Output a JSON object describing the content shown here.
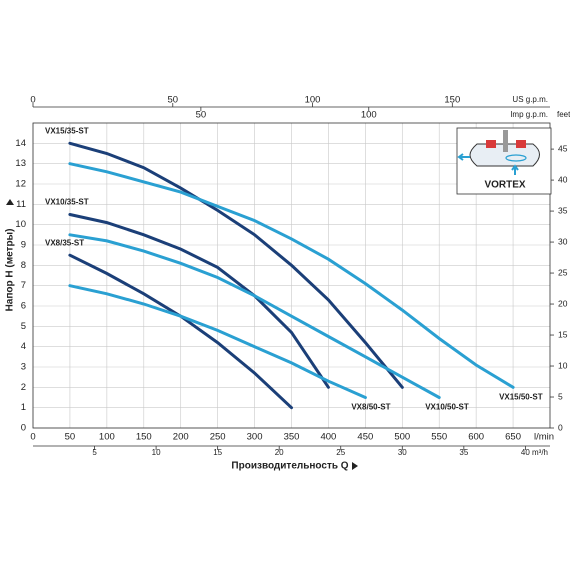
{
  "chart_data": {
    "type": "line",
    "y_label": "Напор H (метры)",
    "x_label": "Производительность Q",
    "x_unit": "l/min",
    "xlim": [
      0,
      700
    ],
    "xticks": [
      0,
      50,
      100,
      150,
      200,
      250,
      300,
      350,
      400,
      450,
      500,
      550,
      600,
      650
    ],
    "ylim": [
      0,
      15
    ],
    "yticks": [
      0,
      1,
      2,
      3,
      4,
      5,
      6,
      7,
      8,
      9,
      10,
      11,
      12,
      13,
      14
    ],
    "grid": true,
    "top_axis_us": {
      "label": "US g.p.m.",
      "lim": [
        0,
        184.94
      ],
      "ticks": [
        0,
        50,
        100,
        150
      ]
    },
    "top_axis_imp": {
      "label": "Imp g.p.m.",
      "lim": [
        0,
        153.98
      ],
      "ticks": [
        50,
        100
      ]
    },
    "bottom_axis_m3h": {
      "label": "m³/h",
      "lim": [
        0,
        42
      ],
      "ticks": [
        5,
        10,
        15,
        20,
        25,
        30,
        35,
        40
      ]
    },
    "y2": {
      "label": "feet",
      "lim": [
        0,
        49.21
      ],
      "ticks": [
        0,
        5,
        10,
        15,
        20,
        25,
        30,
        35,
        40,
        45
      ]
    },
    "series": [
      {
        "name": "VX15/35-ST",
        "color": "#1b3f78",
        "x": [
          50,
          100,
          150,
          200,
          250,
          300,
          350,
          400,
          450,
          500
        ],
        "values": [
          14,
          13.5,
          12.8,
          11.8,
          10.7,
          9.5,
          8,
          6.3,
          4.2,
          2
        ]
      },
      {
        "name": "VX10/35-ST",
        "color": "#1b3f78",
        "x": [
          50,
          100,
          150,
          200,
          250,
          300,
          350,
          400
        ],
        "values": [
          10.5,
          10.1,
          9.5,
          8.8,
          7.9,
          6.5,
          4.7,
          2
        ]
      },
      {
        "name": "VX8/35-ST",
        "color": "#1b3f78",
        "x": [
          50,
          100,
          150,
          200,
          250,
          300,
          350
        ],
        "values": [
          8.5,
          7.6,
          6.6,
          5.5,
          4.2,
          2.7,
          1
        ]
      },
      {
        "name": "VX15/50-ST",
        "color": "#2aa0d2",
        "x": [
          50,
          100,
          200,
          250,
          300,
          350,
          400,
          450,
          500,
          550,
          600,
          650
        ],
        "values": [
          13,
          12.6,
          11.6,
          10.9,
          10.2,
          9.3,
          8.3,
          7.1,
          5.8,
          4.4,
          3.1,
          2
        ]
      },
      {
        "name": "VX10/50-ST",
        "color": "#2aa0d2",
        "x": [
          50,
          100,
          150,
          200,
          250,
          300,
          350,
          400,
          450,
          500,
          550
        ],
        "values": [
          9.5,
          9.2,
          8.7,
          8.1,
          7.4,
          6.5,
          5.5,
          4.5,
          3.5,
          2.5,
          1.5
        ]
      },
      {
        "name": "VX8/50-ST",
        "color": "#2aa0d2",
        "x": [
          50,
          100,
          150,
          200,
          250,
          300,
          350,
          400,
          450
        ],
        "values": [
          7,
          6.6,
          6.1,
          5.5,
          4.8,
          4,
          3.2,
          2.3,
          1.5
        ]
      }
    ]
  },
  "inset": {
    "label": "VORTEX"
  }
}
